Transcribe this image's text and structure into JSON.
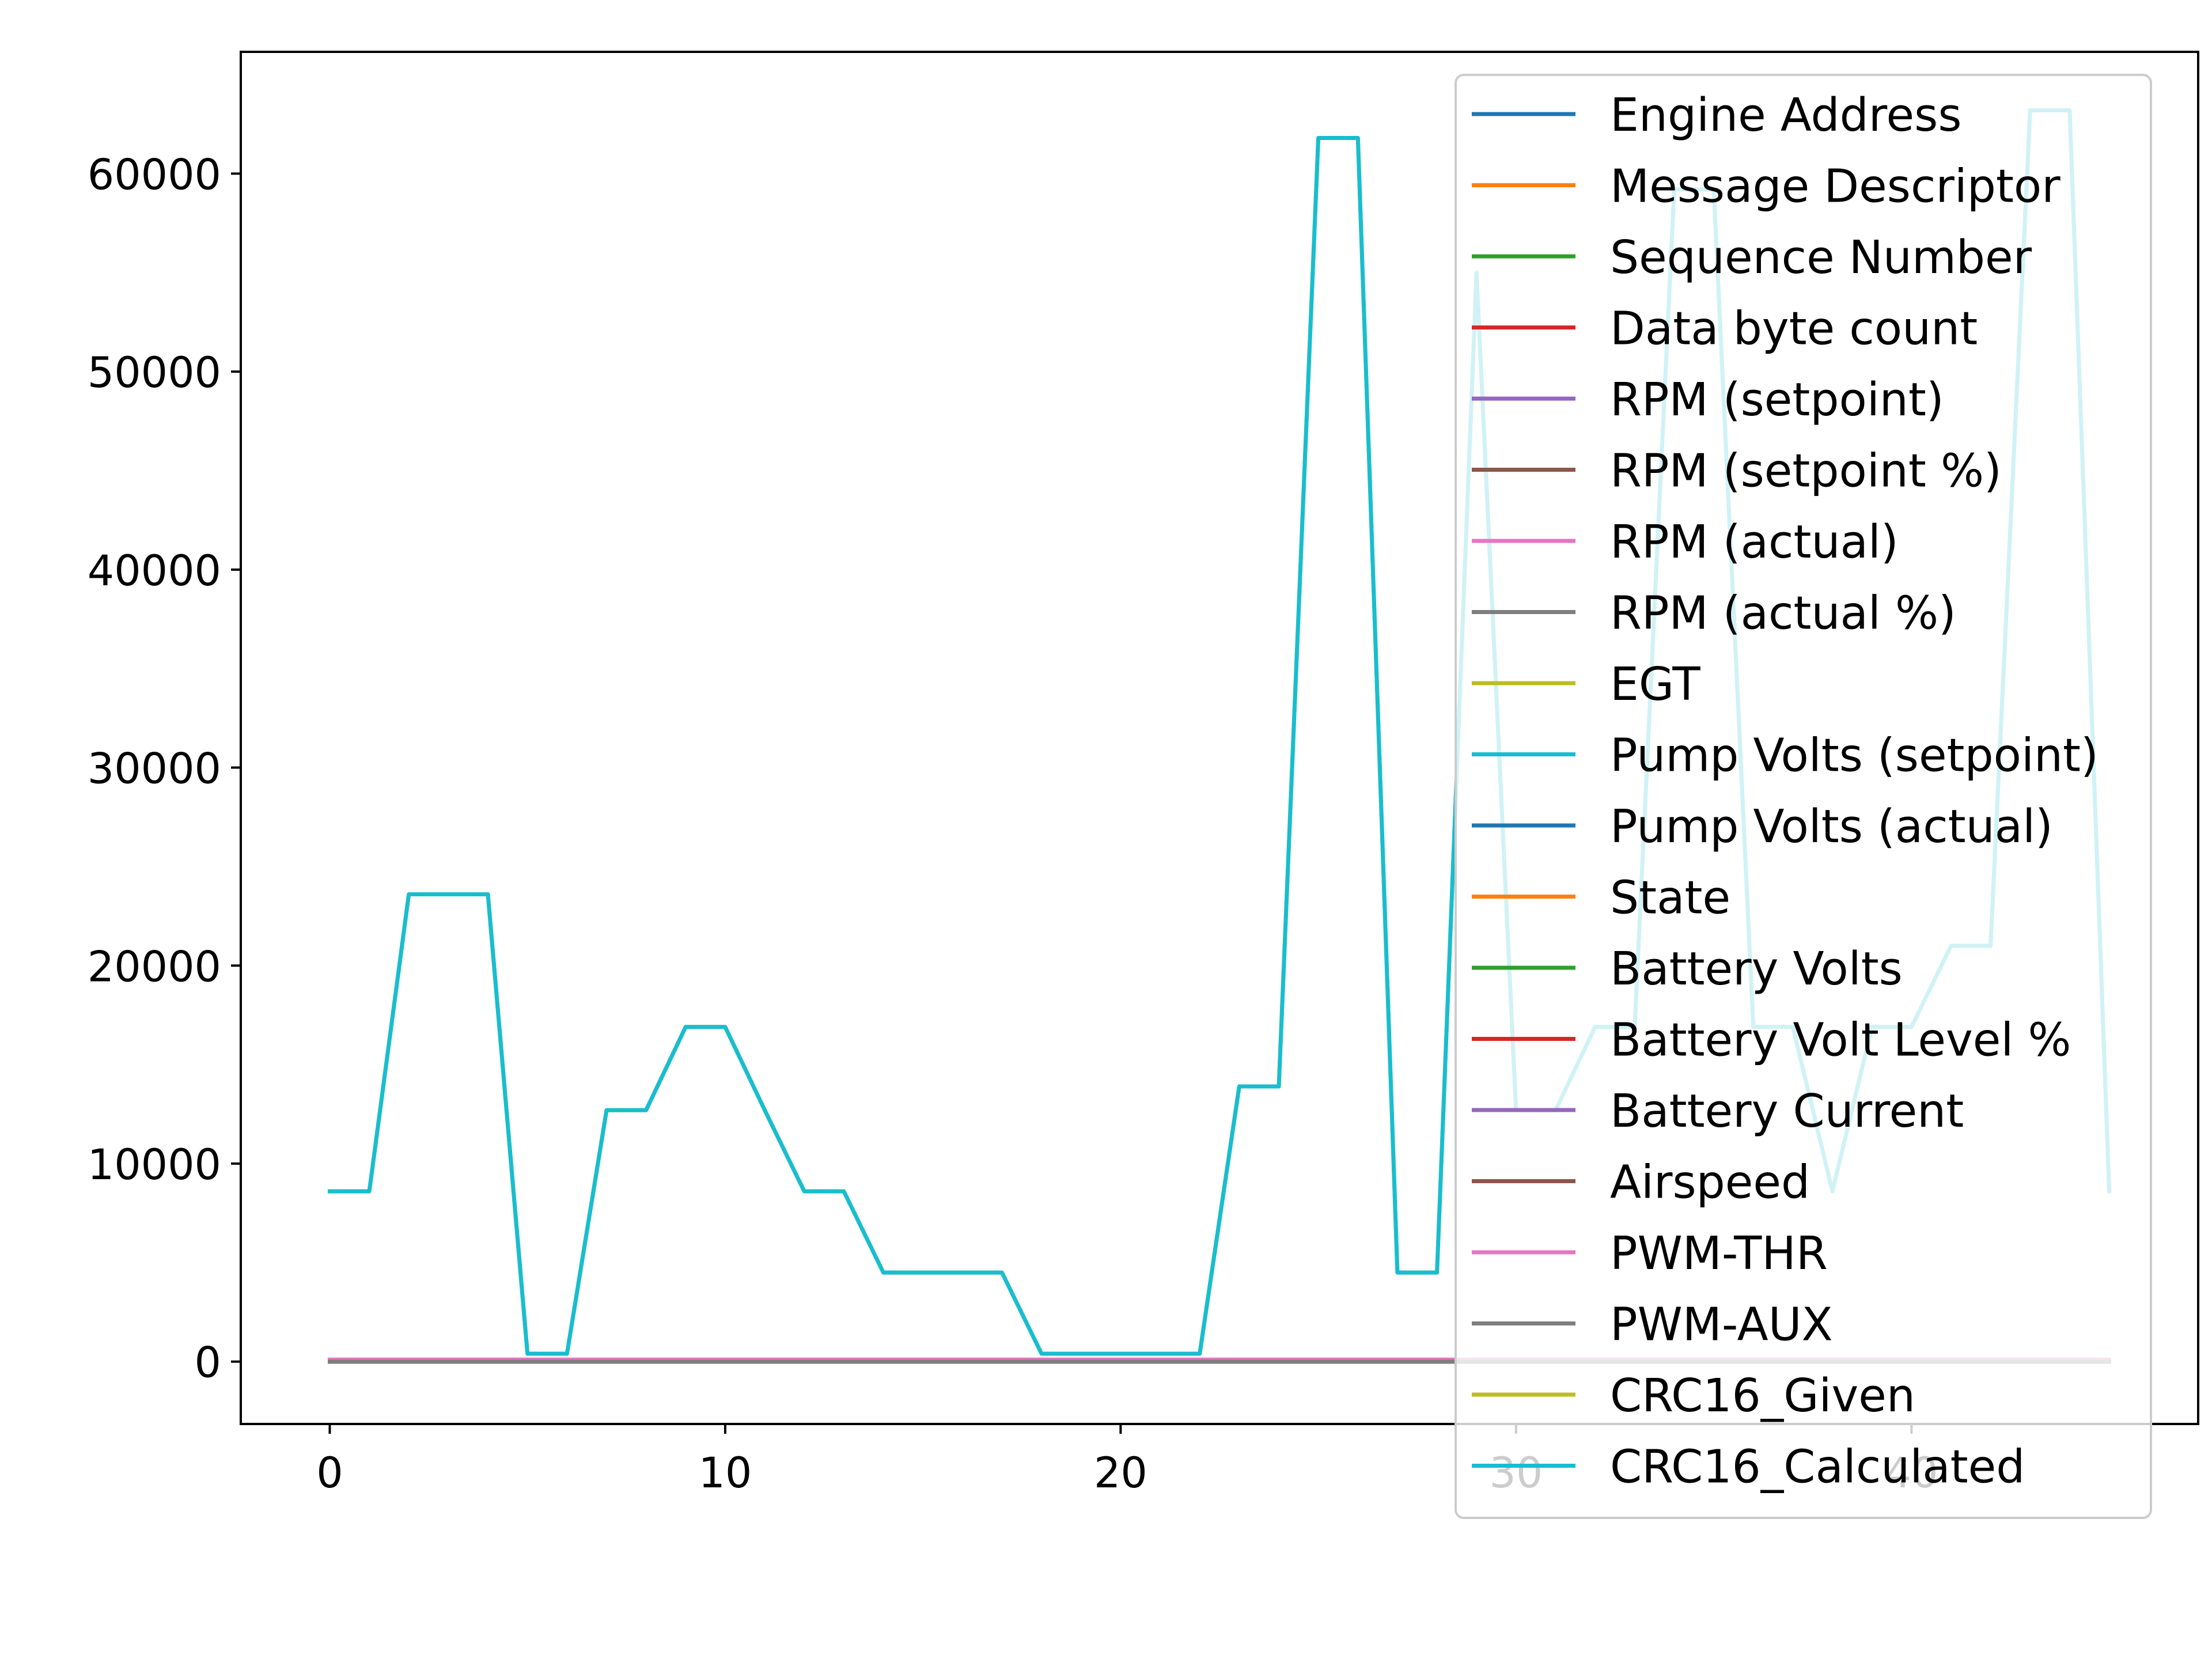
{
  "chart_data": {
    "type": "line",
    "title": "",
    "xlabel": "",
    "ylabel": "",
    "xlim": [
      -2.25,
      47.25
    ],
    "ylim": [
      -3150,
      66150
    ],
    "grid": false,
    "legend_placement": "top-right",
    "x_ticks": [
      0,
      10,
      20,
      30,
      40
    ],
    "y_ticks": [
      0,
      10000,
      20000,
      30000,
      40000,
      50000,
      60000
    ],
    "x_tick_labels": [
      "0",
      "10",
      "20",
      "30",
      "40"
    ],
    "y_tick_labels": [
      "0",
      "10000",
      "20000",
      "30000",
      "40000",
      "50000",
      "60000"
    ],
    "x": [
      0,
      1,
      2,
      3,
      4,
      5,
      6,
      7,
      8,
      9,
      10,
      11,
      12,
      13,
      14,
      15,
      16,
      17,
      18,
      19,
      20,
      21,
      22,
      23,
      24,
      25,
      26,
      27,
      28,
      29,
      30,
      31,
      32,
      33,
      34,
      35,
      36,
      37,
      38,
      39,
      40,
      41,
      42,
      43,
      44,
      45
    ],
    "series": [
      {
        "name": "Engine Address",
        "color": "#1f77b4",
        "values": [
          1,
          1,
          1,
          1,
          1,
          1,
          1,
          1,
          1,
          1,
          1,
          1,
          1,
          1,
          1,
          1,
          1,
          1,
          1,
          1,
          1,
          1,
          1,
          1,
          1,
          1,
          1,
          1,
          1,
          1,
          1,
          1,
          1,
          1,
          1,
          1,
          1,
          1,
          1,
          1,
          1,
          1,
          1,
          1,
          1,
          1
        ]
      },
      {
        "name": "Message Descriptor",
        "color": "#ff7f0e",
        "values": [
          1,
          1,
          1,
          1,
          1,
          1,
          1,
          1,
          1,
          1,
          1,
          1,
          1,
          1,
          1,
          1,
          1,
          1,
          1,
          1,
          1,
          1,
          1,
          1,
          1,
          1,
          1,
          1,
          1,
          1,
          1,
          1,
          1,
          1,
          1,
          1,
          1,
          1,
          1,
          1,
          1,
          1,
          1,
          1,
          1,
          1
        ]
      },
      {
        "name": "Sequence Number",
        "color": "#2ca02c",
        "values": [
          0,
          0,
          0,
          0,
          0,
          0,
          0,
          0,
          0,
          0,
          0,
          0,
          0,
          0,
          0,
          0,
          0,
          0,
          0,
          0,
          0,
          0,
          0,
          0,
          0,
          0,
          0,
          0,
          0,
          0,
          0,
          0,
          0,
          0,
          0,
          0,
          0,
          0,
          0,
          0,
          0,
          0,
          0,
          0,
          0,
          0
        ]
      },
      {
        "name": "Data byte count",
        "color": "#d62728",
        "values": [
          10,
          10,
          10,
          10,
          10,
          10,
          10,
          10,
          10,
          10,
          10,
          10,
          10,
          10,
          10,
          10,
          10,
          10,
          10,
          10,
          10,
          10,
          10,
          10,
          10,
          10,
          10,
          10,
          10,
          10,
          10,
          10,
          10,
          10,
          10,
          10,
          10,
          10,
          10,
          10,
          10,
          10,
          10,
          10,
          10,
          10
        ]
      },
      {
        "name": "RPM (setpoint)",
        "color": "#9467bd",
        "values": [
          0,
          0,
          0,
          0,
          0,
          0,
          0,
          0,
          0,
          0,
          0,
          0,
          0,
          0,
          0,
          0,
          0,
          0,
          0,
          0,
          0,
          0,
          0,
          0,
          0,
          0,
          0,
          0,
          0,
          0,
          0,
          0,
          0,
          0,
          0,
          0,
          0,
          0,
          0,
          0,
          0,
          0,
          0,
          0,
          0,
          0
        ]
      },
      {
        "name": "RPM (setpoint %)",
        "color": "#8c564b",
        "values": [
          0,
          0,
          0,
          0,
          0,
          0,
          0,
          0,
          0,
          0,
          0,
          0,
          0,
          0,
          0,
          0,
          0,
          0,
          0,
          0,
          0,
          0,
          0,
          0,
          0,
          0,
          0,
          0,
          0,
          0,
          0,
          0,
          0,
          0,
          0,
          0,
          0,
          0,
          0,
          0,
          0,
          0,
          0,
          0,
          0,
          0
        ]
      },
      {
        "name": "RPM (actual)",
        "color": "#e377c2",
        "values": [
          0,
          0,
          0,
          0,
          0,
          0,
          0,
          0,
          0,
          0,
          0,
          0,
          0,
          0,
          0,
          0,
          0,
          0,
          0,
          0,
          0,
          0,
          0,
          0,
          0,
          0,
          0,
          0,
          0,
          0,
          0,
          0,
          0,
          0,
          0,
          0,
          0,
          0,
          0,
          0,
          0,
          0,
          0,
          0,
          0,
          0
        ]
      },
      {
        "name": "RPM (actual %)",
        "color": "#7f7f7f",
        "values": [
          0,
          0,
          0,
          0,
          0,
          0,
          0,
          0,
          0,
          0,
          0,
          0,
          0,
          0,
          0,
          0,
          0,
          0,
          0,
          0,
          0,
          0,
          0,
          0,
          0,
          0,
          0,
          0,
          0,
          0,
          0,
          0,
          0,
          0,
          0,
          0,
          0,
          0,
          0,
          0,
          0,
          0,
          0,
          0,
          0,
          0
        ]
      },
      {
        "name": "EGT",
        "color": "#bcbd22",
        "values": [
          0,
          0,
          0,
          0,
          0,
          0,
          0,
          0,
          0,
          0,
          0,
          0,
          0,
          0,
          0,
          0,
          0,
          0,
          0,
          0,
          0,
          0,
          0,
          0,
          0,
          0,
          0,
          0,
          0,
          0,
          0,
          0,
          0,
          0,
          0,
          0,
          0,
          0,
          0,
          0,
          0,
          0,
          0,
          0,
          0,
          0
        ]
      },
      {
        "name": "Pump Volts (setpoint)",
        "color": "#17becf",
        "values": [
          0,
          0,
          0,
          0,
          0,
          0,
          0,
          0,
          0,
          0,
          0,
          0,
          0,
          0,
          0,
          0,
          0,
          0,
          0,
          0,
          0,
          0,
          0,
          0,
          0,
          0,
          0,
          0,
          0,
          0,
          0,
          0,
          0,
          0,
          0,
          0,
          0,
          0,
          0,
          0,
          0,
          0,
          0,
          0,
          0,
          0
        ]
      },
      {
        "name": "Pump Volts (actual)",
        "color": "#1f77b4",
        "values": [
          0,
          0,
          0,
          0,
          0,
          0,
          0,
          0,
          0,
          0,
          0,
          0,
          0,
          0,
          0,
          0,
          0,
          0,
          0,
          0,
          0,
          0,
          0,
          0,
          0,
          0,
          0,
          0,
          0,
          0,
          0,
          0,
          0,
          0,
          0,
          0,
          0,
          0,
          0,
          0,
          0,
          0,
          0,
          0,
          0,
          0
        ]
      },
      {
        "name": "State",
        "color": "#ff7f0e",
        "values": [
          0,
          0,
          0,
          0,
          0,
          0,
          0,
          0,
          0,
          0,
          0,
          0,
          0,
          0,
          0,
          0,
          0,
          0,
          0,
          0,
          0,
          0,
          0,
          0,
          0,
          0,
          0,
          0,
          0,
          0,
          0,
          0,
          0,
          0,
          0,
          0,
          0,
          0,
          0,
          0,
          0,
          0,
          0,
          0,
          0,
          0
        ]
      },
      {
        "name": "Battery Volts",
        "color": "#2ca02c",
        "values": [
          0,
          0,
          0,
          0,
          0,
          0,
          0,
          0,
          0,
          0,
          0,
          0,
          0,
          0,
          0,
          0,
          0,
          0,
          0,
          0,
          0,
          0,
          0,
          0,
          0,
          0,
          0,
          0,
          0,
          0,
          0,
          0,
          0,
          0,
          0,
          0,
          0,
          0,
          0,
          0,
          0,
          0,
          0,
          0,
          0,
          0
        ]
      },
      {
        "name": "Battery Volt Level %",
        "color": "#d62728",
        "values": [
          0,
          0,
          0,
          0,
          0,
          0,
          0,
          0,
          0,
          0,
          0,
          0,
          0,
          0,
          0,
          0,
          0,
          0,
          0,
          0,
          0,
          0,
          0,
          0,
          0,
          0,
          0,
          0,
          0,
          0,
          0,
          0,
          0,
          0,
          0,
          0,
          0,
          0,
          0,
          0,
          0,
          0,
          0,
          0,
          0,
          0
        ]
      },
      {
        "name": "Battery Current",
        "color": "#9467bd",
        "values": [
          0,
          0,
          0,
          0,
          0,
          0,
          0,
          0,
          0,
          0,
          0,
          0,
          0,
          0,
          0,
          0,
          0,
          0,
          0,
          0,
          0,
          0,
          0,
          0,
          0,
          0,
          0,
          0,
          0,
          0,
          0,
          0,
          0,
          0,
          0,
          0,
          0,
          0,
          0,
          0,
          0,
          0,
          0,
          0,
          0,
          0
        ]
      },
      {
        "name": "Airspeed",
        "color": "#8c564b",
        "values": [
          0,
          0,
          0,
          0,
          0,
          0,
          0,
          0,
          0,
          0,
          0,
          0,
          0,
          0,
          0,
          0,
          0,
          0,
          0,
          0,
          0,
          0,
          0,
          0,
          0,
          0,
          0,
          0,
          0,
          0,
          0,
          0,
          0,
          0,
          0,
          0,
          0,
          0,
          0,
          0,
          0,
          0,
          0,
          0,
          0,
          0
        ]
      },
      {
        "name": "PWM-THR",
        "color": "#e377c2",
        "values": [
          100,
          100,
          100,
          100,
          100,
          100,
          100,
          100,
          100,
          100,
          100,
          100,
          100,
          100,
          100,
          100,
          100,
          100,
          100,
          100,
          100,
          100,
          100,
          100,
          100,
          100,
          100,
          100,
          100,
          100,
          100,
          100,
          100,
          100,
          100,
          100,
          100,
          100,
          100,
          100,
          100,
          100,
          100,
          100,
          100,
          100
        ]
      },
      {
        "name": "PWM-AUX",
        "color": "#7f7f7f",
        "values": [
          0,
          0,
          0,
          0,
          0,
          0,
          0,
          0,
          0,
          0,
          0,
          0,
          0,
          0,
          0,
          0,
          0,
          0,
          0,
          0,
          0,
          0,
          0,
          0,
          0,
          0,
          0,
          0,
          0,
          0,
          0,
          0,
          0,
          0,
          0,
          0,
          0,
          0,
          0,
          0,
          0,
          0,
          0,
          0,
          0,
          0
        ]
      },
      {
        "name": "CRC16_Given",
        "color": "#bcbd22",
        "values": [
          8600,
          8600,
          23600,
          23600,
          23600,
          400,
          400,
          12700,
          12700,
          16900,
          16900,
          12700,
          8600,
          8600,
          4500,
          4500,
          4500,
          4500,
          400,
          400,
          400,
          400,
          400,
          13900,
          13900,
          61800,
          61800,
          4500,
          4500,
          55000,
          12700,
          12700,
          16900,
          16900,
          59200,
          59200,
          16900,
          16900,
          8600,
          16900,
          16900,
          21000,
          21000,
          63200,
          63200,
          8600
        ]
      },
      {
        "name": "CRC16_Calculated",
        "color": "#17becf",
        "values": [
          8600,
          8600,
          23600,
          23600,
          23600,
          400,
          400,
          12700,
          12700,
          16900,
          16900,
          12700,
          8600,
          8600,
          4500,
          4500,
          4500,
          4500,
          400,
          400,
          400,
          400,
          400,
          13900,
          13900,
          61800,
          61800,
          4500,
          4500,
          55000,
          12700,
          12700,
          16900,
          16900,
          59200,
          59200,
          16900,
          16900,
          8600,
          16900,
          16900,
          21000,
          21000,
          63200,
          63200,
          8600
        ]
      }
    ]
  }
}
